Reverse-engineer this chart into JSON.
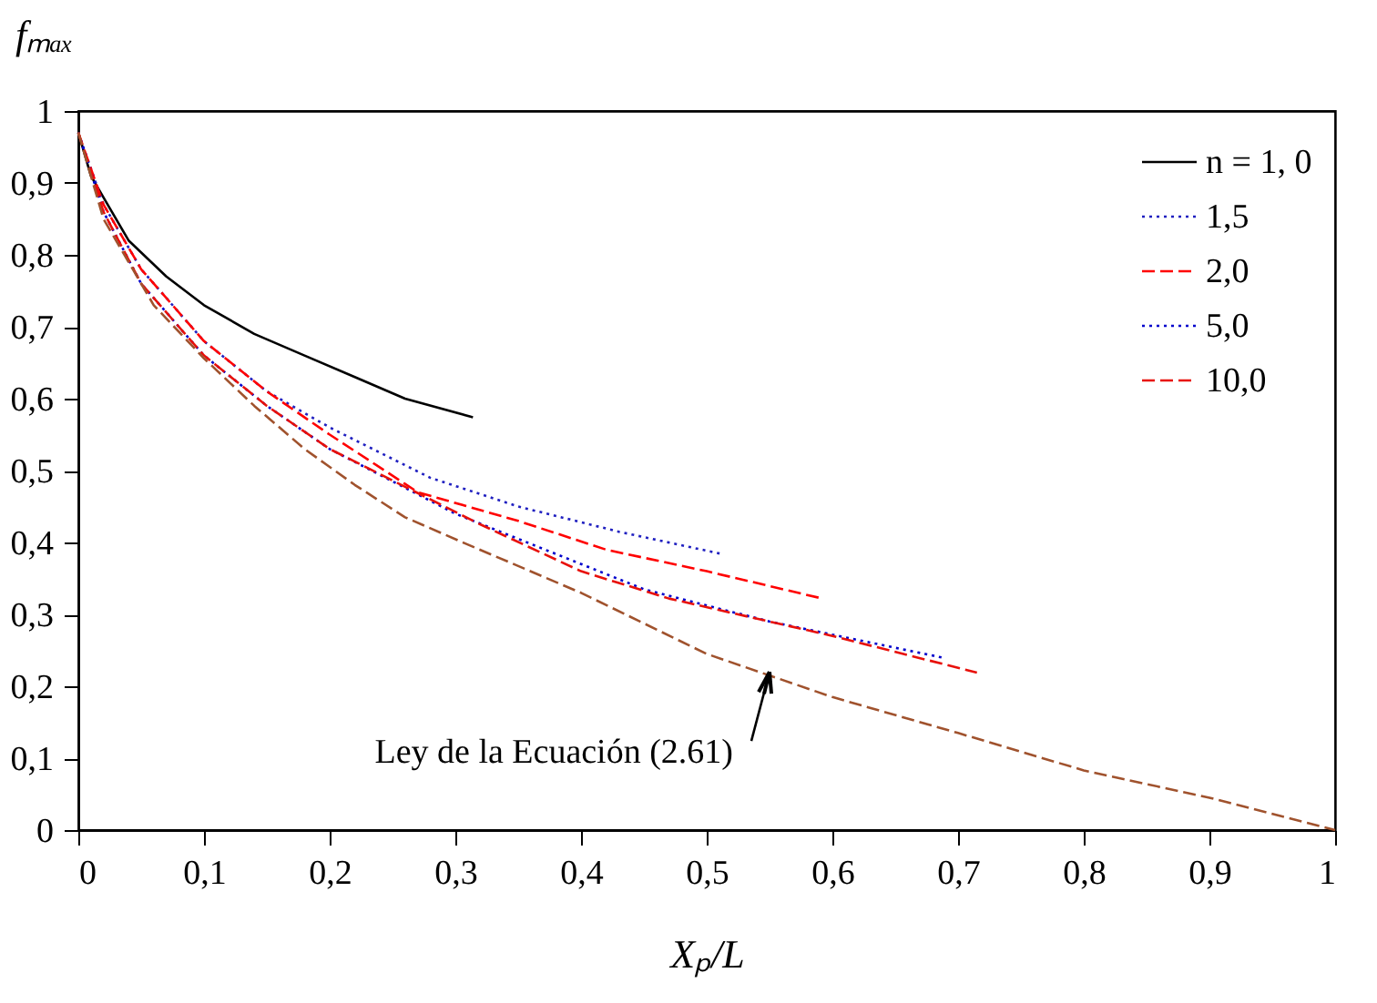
{
  "chart_data": {
    "type": "line",
    "xlabel": "Xₚ/L",
    "ylabel": "fₘₐₓ",
    "xlim": [
      0,
      1
    ],
    "ylim": [
      0,
      1
    ],
    "xticks": [
      0,
      {
        "value": 0.1,
        "label": "0,1"
      },
      {
        "value": 0.2,
        "label": "0,2"
      },
      {
        "value": 0.3,
        "label": "0,3"
      },
      {
        "value": 0.4,
        "label": "0,4"
      },
      {
        "value": 0.5,
        "label": "0,5"
      },
      {
        "value": 0.6,
        "label": "0,6"
      },
      {
        "value": 0.7,
        "label": "0,7"
      },
      {
        "value": 0.8,
        "label": "0,8"
      },
      {
        "value": 0.9,
        "label": "0,9"
      },
      1
    ],
    "yticks": [
      0,
      {
        "value": 0.1,
        "label": "0,1"
      },
      {
        "value": 0.2,
        "label": "0,2"
      },
      {
        "value": 0.3,
        "label": "0,3"
      },
      {
        "value": 0.4,
        "label": "0,4"
      },
      {
        "value": 0.5,
        "label": "0,5"
      },
      {
        "value": 0.6,
        "label": "0,6"
      },
      {
        "value": 0.7,
        "label": "0,7"
      },
      {
        "value": 0.8,
        "label": "0,8"
      },
      {
        "value": 0.9,
        "label": "0,9"
      },
      1
    ],
    "grid": false,
    "legend": "top right",
    "marker": "none",
    "series": [
      {
        "name": "n = 1, 0",
        "color": "#000000",
        "line_style": "solid",
        "x": [
          0,
          0.01,
          0.02,
          0.04,
          0.07,
          0.1,
          0.14,
          0.18,
          0.22,
          0.26,
          0.314
        ],
        "values": [
          0.97,
          0.91,
          0.88,
          0.82,
          0.77,
          0.73,
          0.69,
          0.66,
          0.63,
          0.6,
          0.574
        ]
      },
      {
        "name": "1,5",
        "color": "#2020c0",
        "line_style": "dotted",
        "x": [
          0,
          0.02,
          0.05,
          0.1,
          0.15,
          0.2,
          0.28,
          0.35,
          0.43,
          0.512
        ],
        "values": [
          0.97,
          0.87,
          0.78,
          0.68,
          0.61,
          0.56,
          0.49,
          0.45,
          0.415,
          0.384
        ]
      },
      {
        "name": "2,0",
        "color": "#ff0000",
        "line_style": "dashed",
        "x": [
          0,
          0.02,
          0.05,
          0.1,
          0.15,
          0.2,
          0.27,
          0.35,
          0.42,
          0.5,
          0.592
        ],
        "values": [
          0.97,
          0.87,
          0.78,
          0.68,
          0.61,
          0.55,
          0.47,
          0.43,
          0.39,
          0.36,
          0.322
        ]
      },
      {
        "name": "5,0",
        "color": "#0000cc",
        "line_style": "dotted",
        "x": [
          0,
          0.02,
          0.05,
          0.1,
          0.15,
          0.2,
          0.3,
          0.4,
          0.45,
          0.55,
          0.69
        ],
        "values": [
          0.97,
          0.86,
          0.76,
          0.66,
          0.59,
          0.53,
          0.44,
          0.37,
          0.335,
          0.29,
          0.239
        ]
      },
      {
        "name": "10,0",
        "color": "#e8100a",
        "line_style": "dashed",
        "x": [
          0,
          0.02,
          0.05,
          0.1,
          0.15,
          0.2,
          0.32,
          0.4,
          0.47,
          0.6,
          0.715
        ],
        "values": [
          0.97,
          0.86,
          0.76,
          0.66,
          0.59,
          0.53,
          0.425,
          0.36,
          0.322,
          0.27,
          0.219
        ]
      },
      {
        "color": "#a0522d",
        "line_style": "dashed",
        "x": [
          0,
          0.02,
          0.06,
          0.1,
          0.14,
          0.18,
          0.22,
          0.26,
          0.31,
          0.4,
          0.5,
          0.6,
          0.7,
          0.8,
          0.9,
          1
        ],
        "values": [
          0.97,
          0.85,
          0.73,
          0.656,
          0.59,
          0.53,
          0.48,
          0.435,
          0.397,
          0.33,
          0.245,
          0.185,
          0.135,
          0.083,
          0.045,
          0
        ]
      }
    ],
    "annotations": [
      {
        "text": "Ley de la Ecuación (2.61)",
        "x": 0.55,
        "y": 0.22
      }
    ]
  }
}
